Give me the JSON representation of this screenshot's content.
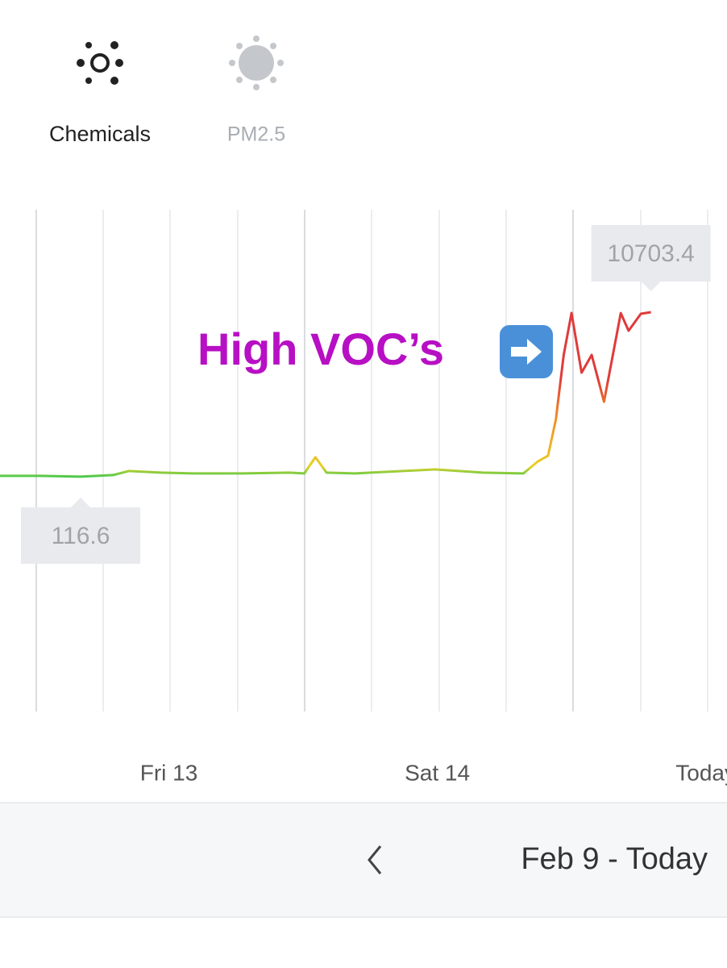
{
  "tabs": [
    {
      "label": "Chemicals"
    },
    {
      "label": "PM2.5"
    }
  ],
  "chart_data": {
    "type": "line",
    "annotation": "High VOC’s",
    "xlim": [
      -15.1,
      49.9
    ],
    "ylim": [
      -15000,
      17300
    ],
    "xticks": [
      {
        "value": 0,
        "label": "Fri 13"
      },
      {
        "value": 24,
        "label": "Sat 14"
      },
      {
        "value": 48,
        "label": "Today"
      }
    ],
    "colors": [
      "#4cc94c",
      "#e8d027",
      "#f0902a",
      "#e03a3a"
    ],
    "series": [
      {
        "name": "Chemicals",
        "x": [
          -15.1,
          -11.5,
          -7.9,
          -5.0,
          -3.6,
          -0.7,
          2.2,
          6.5,
          10.8,
          12.1,
          13.1,
          14.1,
          16.6,
          20.9,
          23.8,
          28.1,
          31.7,
          33.0,
          33.9,
          34.6,
          35.3,
          36.0,
          36.9,
          37.8,
          38.9,
          40.4,
          41.1,
          42.2,
          43.1
        ],
        "values": [
          168,
          168,
          116.6,
          220,
          480,
          376,
          324,
          324,
          376,
          324,
          1362,
          376,
          324,
          480,
          584,
          376,
          324,
          1103,
          1466,
          3802,
          7954,
          10652,
          6812,
          7954,
          4943,
          10650,
          9510,
          10600,
          10703.4
        ]
      }
    ]
  },
  "footer": {
    "range": "Feb 9 - Today"
  }
}
